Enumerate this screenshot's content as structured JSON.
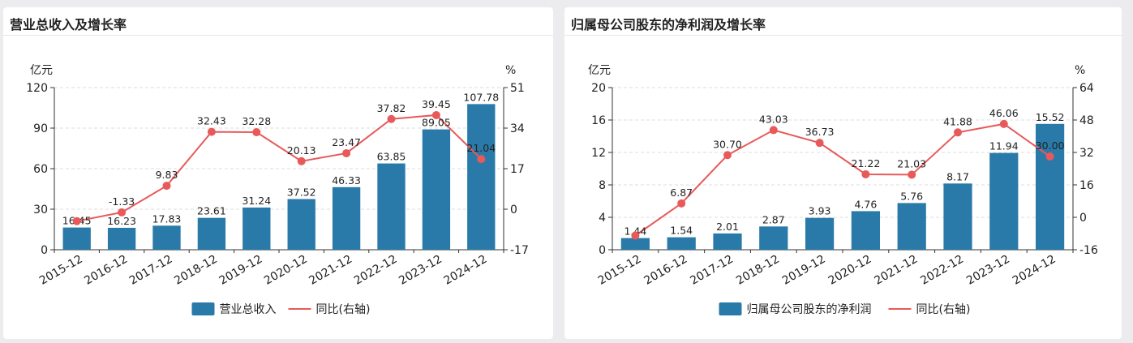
{
  "colors": {
    "bar": "#2a7aa9",
    "line": "#e8595a",
    "axis": "#333333",
    "grid": "#dcdcdc"
  },
  "charts": [
    {
      "title": "营业总收入及增长率",
      "chart_data": {
        "type": "bar",
        "categories": [
          "2015-12",
          "2016-12",
          "2017-12",
          "2018-12",
          "2019-12",
          "2020-12",
          "2021-12",
          "2022-12",
          "2023-12",
          "2024-12"
        ],
        "series": [
          {
            "name": "营业总收入",
            "type": "bar",
            "axis": "left",
            "values": [
              16.45,
              16.23,
              17.83,
              23.61,
              31.24,
              37.52,
              46.33,
              63.85,
              89.05,
              107.78
            ]
          },
          {
            "name": "同比(右轴)",
            "type": "line",
            "axis": "right",
            "values": [
              -5.0,
              -1.33,
              9.83,
              32.43,
              32.28,
              20.13,
              23.47,
              37.82,
              39.45,
              21.04
            ]
          }
        ],
        "bar_labels": [
          "16.45",
          "16.23",
          "17.83",
          "23.61",
          "31.24",
          "37.52",
          "46.33",
          "63.85",
          "89.05",
          "107.78"
        ],
        "line_labels": [
          "",
          "-1.33",
          "9.83",
          "32.43",
          "32.28",
          "20.13",
          "23.47",
          "37.82",
          "39.45",
          "21.04"
        ],
        "yleft": {
          "unit": "亿元",
          "min": 0,
          "max": 120,
          "ticks": [
            "0",
            "30",
            "60",
            "90",
            "120"
          ]
        },
        "yright": {
          "unit": "%",
          "min": -17,
          "max": 51,
          "ticks": [
            "-17",
            "0",
            "17",
            "34",
            "51"
          ]
        },
        "grid": true,
        "legend": "bottom"
      }
    },
    {
      "title": "归属母公司股东的净利润及增长率",
      "chart_data": {
        "type": "bar",
        "categories": [
          "2015-12",
          "2016-12",
          "2017-12",
          "2018-12",
          "2019-12",
          "2020-12",
          "2021-12",
          "2022-12",
          "2023-12",
          "2024-12"
        ],
        "series": [
          {
            "name": "归属母公司股东的净利润",
            "type": "bar",
            "axis": "left",
            "values": [
              1.44,
              1.54,
              2.01,
              2.87,
              3.93,
              4.76,
              5.76,
              8.17,
              11.94,
              15.52
            ]
          },
          {
            "name": "同比(右轴)",
            "type": "line",
            "axis": "right",
            "values": [
              -9.0,
              6.87,
              30.7,
              43.03,
              36.73,
              21.22,
              21.03,
              41.88,
              46.06,
              30.0
            ]
          }
        ],
        "bar_labels": [
          "1.44",
          "1.54",
          "2.01",
          "2.87",
          "3.93",
          "4.76",
          "5.76",
          "8.17",
          "11.94",
          "15.52"
        ],
        "line_labels": [
          "",
          "6.87",
          "30.70",
          "43.03",
          "36.73",
          "21.22",
          "21.03",
          "41.88",
          "46.06",
          "30.00"
        ],
        "yleft": {
          "unit": "亿元",
          "min": 0,
          "max": 20,
          "ticks": [
            "0",
            "4",
            "8",
            "12",
            "16",
            "20"
          ]
        },
        "yright": {
          "unit": "%",
          "min": -16,
          "max": 64,
          "ticks": [
            "-16",
            "0",
            "16",
            "32",
            "48",
            "64"
          ]
        },
        "grid": true,
        "legend": "bottom"
      }
    }
  ]
}
